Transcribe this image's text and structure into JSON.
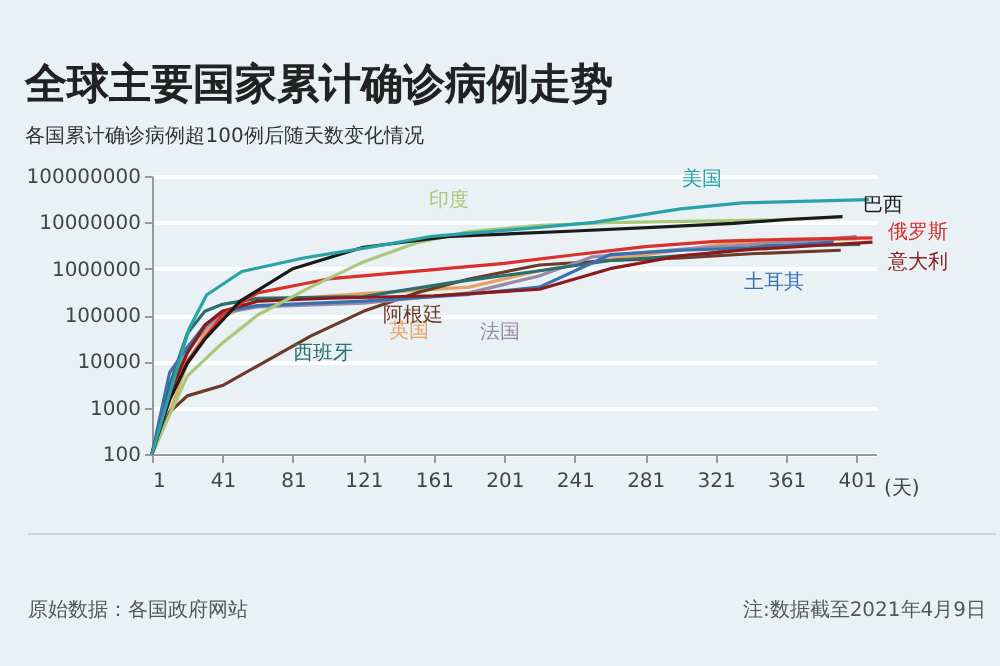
{
  "chart_data": {
    "type": "line",
    "title": "全球主要国家累计确诊病例走势",
    "subtitle": "各国累计确诊病例超100例后随天数变化情况",
    "xlabel": "(天)",
    "annotations": [
      "原始数据：各国政府网站",
      "注:数据截至2021年4月9日"
    ],
    "log": "y",
    "grid": "y",
    "marker": "none",
    "line_style": "solid",
    "xlim": [
      1,
      412
    ],
    "xticks": [
      1,
      41,
      81,
      121,
      161,
      201,
      241,
      281,
      321,
      361,
      401
    ],
    "ylim": [
      100,
      100000000
    ],
    "yticks": [
      100,
      1000,
      10000,
      100000,
      1000000,
      10000000,
      100000000
    ],
    "series": [
      {
        "name": "英国",
        "color": "#e8a262",
        "x": [
          1,
          11,
          21,
          31,
          41,
          61,
          121,
          181,
          221,
          261,
          301,
          331,
          401
        ],
        "values": [
          100,
          800,
          9000,
          40000,
          90000,
          200000,
          290000,
          400000,
          900000,
          1600000,
          2500000,
          3700000,
          4370000
        ]
      },
      {
        "name": "阿根廷",
        "color": "#6b3a2a",
        "x": [
          1,
          11,
          21,
          41,
          61,
          91,
          121,
          151,
          181,
          221,
          261,
          301,
          341,
          392
        ],
        "values": [
          100,
          800,
          1800,
          3000,
          8000,
          35000,
          120000,
          300000,
          600000,
          1200000,
          1500000,
          1700000,
          2100000,
          2500000
        ]
      },
      {
        "name": "法国",
        "color": "#9a8aa8",
        "x": [
          1,
          11,
          21,
          31,
          41,
          61,
          121,
          181,
          221,
          251,
          301,
          341,
          401
        ],
        "values": [
          100,
          2800,
          16000,
          50000,
          110000,
          150000,
          180000,
          300000,
          700000,
          1800000,
          2600000,
          3300000,
          4900000
        ]
      },
      {
        "name": "西班牙",
        "color": "#2a6e6e",
        "x": [
          1,
          11,
          21,
          31,
          41,
          61,
          121,
          171,
          221,
          261,
          311,
          351,
          403
        ],
        "values": [
          100,
          3000,
          40000,
          120000,
          170000,
          230000,
          250000,
          500000,
          900000,
          1500000,
          2000000,
          3100000,
          3330000
        ]
      },
      {
        "name": "土耳其",
        "color": "#3a6fb0",
        "x": [
          1,
          11,
          21,
          31,
          41,
          61,
          121,
          181,
          221,
          261,
          301,
          341,
          388
        ],
        "values": [
          100,
          5700,
          20000,
          60000,
          120000,
          160000,
          200000,
          280000,
          400000,
          2000000,
          2500000,
          2800000,
          3800000
        ]
      },
      {
        "name": "意大利",
        "color": "#8b1a1a",
        "x": [
          1,
          11,
          21,
          31,
          41,
          61,
          101,
          161,
          221,
          261,
          301,
          341,
          381,
          410
        ],
        "values": [
          100,
          2000,
          15000,
          60000,
          120000,
          200000,
          230000,
          260000,
          360000,
          1000000,
          1900000,
          2600000,
          3200000,
          3740000
        ]
      },
      {
        "name": "俄罗斯",
        "color": "#d9302c",
        "x": [
          1,
          11,
          21,
          41,
          61,
          101,
          161,
          201,
          241,
          281,
          321,
          361,
          410
        ],
        "values": [
          100,
          1500,
          10000,
          100000,
          300000,
          600000,
          950000,
          1300000,
          2000000,
          3000000,
          3900000,
          4300000,
          4600000
        ]
      },
      {
        "name": "印度",
        "color": "#a8c97a",
        "x": [
          1,
          11,
          21,
          41,
          61,
          91,
          121,
          151,
          181,
          221,
          261,
          321,
          361,
          392
        ],
        "values": [
          100,
          700,
          4800,
          25000,
          100000,
          400000,
          1400000,
          3600000,
          6300000,
          8600000,
          9900000,
          10800000,
          11300000,
          13200000
        ]
      },
      {
        "name": "巴西",
        "color": "#1a1a1a",
        "x": [
          1,
          11,
          21,
          31,
          51,
          81,
          121,
          171,
          241,
          291,
          331,
          361,
          393
        ],
        "values": [
          100,
          1500,
          9000,
          30000,
          200000,
          1000000,
          2900000,
          5000000,
          6500000,
          8000000,
          9500000,
          11500000,
          13300000
        ]
      },
      {
        "name": "美国",
        "color": "#2aa3a8",
        "x": [
          1,
          12,
          22,
          32,
          52,
          87,
          127,
          160,
          213,
          252,
          301,
          336,
          408
        ],
        "values": [
          100,
          2700,
          50000,
          270000,
          870000,
          1700000,
          3000000,
          5000000,
          7300000,
          10000000,
          19500000,
          26300000,
          31000000
        ]
      }
    ]
  }
}
